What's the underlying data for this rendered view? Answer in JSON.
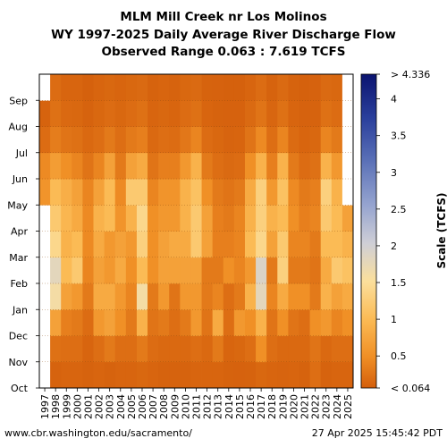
{
  "title": {
    "line1": "MLM Mill Creek nr Los Molinos",
    "line2": "WY 1997-2025 Daily Average River Discharge Flow",
    "line3": "Observed Range 0.063 : 7.619 TCFS"
  },
  "footer": {
    "source": "www.cbr.washington.edu/sacramento/",
    "timestamp": "27 Apr 2025 15:45:42 PDT"
  },
  "chart_data": {
    "type": "heatmap",
    "x_label": "",
    "y_label": "",
    "years": [
      "1997",
      "1998",
      "1999",
      "2000",
      "2001",
      "2002",
      "2003",
      "2004",
      "2005",
      "2006",
      "2007",
      "2008",
      "2009",
      "2010",
      "2011",
      "2012",
      "2013",
      "2014",
      "2015",
      "2016",
      "2017",
      "2018",
      "2019",
      "2020",
      "2021",
      "2022",
      "2023",
      "2024",
      "2025"
    ],
    "months": [
      "Oct",
      "Nov",
      "Dec",
      "Jan",
      "Feb",
      "Mar",
      "Apr",
      "May",
      "Jun",
      "Jul",
      "Aug",
      "Sep"
    ],
    "colorbar": {
      "title": "Scale (TCFS)",
      "ticks": [
        "< 0.064",
        "0.5",
        "1",
        "1.5",
        "2",
        "2.5",
        "3",
        "3.5",
        "4",
        "> 4.336"
      ],
      "tick_values": [
        0.064,
        0.5,
        1,
        1.5,
        2,
        2.5,
        3,
        3.5,
        4,
        4.336
      ],
      "min": 0.064,
      "max": 4.336
    },
    "monthly_mean_tcfs": [
      [
        0.0,
        0.0,
        0.0,
        0.0,
        0.0,
        0.0,
        0.0,
        0.55,
        0.45,
        0.18,
        0.1,
        0.0
      ],
      [
        0.1,
        0.22,
        0.7,
        1.6,
        1.8,
        1.4,
        1.2,
        1.0,
        0.65,
        0.33,
        0.22,
        0.18
      ],
      [
        0.12,
        0.2,
        0.35,
        0.7,
        1.0,
        0.9,
        0.95,
        0.85,
        0.5,
        0.25,
        0.15,
        0.12
      ],
      [
        0.12,
        0.2,
        0.3,
        0.6,
        1.2,
        1.0,
        0.8,
        0.7,
        0.4,
        0.22,
        0.14,
        0.12
      ],
      [
        0.1,
        0.12,
        0.18,
        0.3,
        0.4,
        0.45,
        0.45,
        0.4,
        0.25,
        0.15,
        0.1,
        0.08
      ],
      [
        0.12,
        0.2,
        0.6,
        0.8,
        0.7,
        0.8,
        0.9,
        0.7,
        0.4,
        0.2,
        0.14,
        0.12
      ],
      [
        0.1,
        0.3,
        0.7,
        0.8,
        0.6,
        0.6,
        1.0,
        1.0,
        0.7,
        0.3,
        0.18,
        0.14
      ],
      [
        0.12,
        0.2,
        0.5,
        0.6,
        0.8,
        0.7,
        0.55,
        0.45,
        0.3,
        0.2,
        0.14,
        0.12
      ],
      [
        0.12,
        0.2,
        0.3,
        0.4,
        0.5,
        0.6,
        0.9,
        1.2,
        0.7,
        0.3,
        0.18,
        0.14
      ],
      [
        0.14,
        0.3,
        0.9,
        1.6,
        1.0,
        1.3,
        1.4,
        1.2,
        0.8,
        0.35,
        0.22,
        0.16
      ],
      [
        0.12,
        0.18,
        0.25,
        0.3,
        0.5,
        0.5,
        0.5,
        0.4,
        0.25,
        0.15,
        0.12,
        0.1
      ],
      [
        0.1,
        0.15,
        0.3,
        0.6,
        0.7,
        0.7,
        0.6,
        0.55,
        0.35,
        0.2,
        0.14,
        0.12
      ],
      [
        0.1,
        0.15,
        0.2,
        0.25,
        0.7,
        0.8,
        0.6,
        0.55,
        0.35,
        0.18,
        0.12,
        0.1
      ],
      [
        0.1,
        0.15,
        0.3,
        0.6,
        0.7,
        0.8,
        0.9,
        0.9,
        0.6,
        0.28,
        0.18,
        0.14
      ],
      [
        0.12,
        0.2,
        0.6,
        0.6,
        0.7,
        1.2,
        1.2,
        1.1,
        0.9,
        0.4,
        0.22,
        0.16
      ],
      [
        0.12,
        0.15,
        0.25,
        0.3,
        0.3,
        0.7,
        0.7,
        0.5,
        0.3,
        0.18,
        0.12,
        0.1
      ],
      [
        0.12,
        0.3,
        0.8,
        0.4,
        0.3,
        0.35,
        0.35,
        0.3,
        0.2,
        0.14,
        0.1,
        0.09
      ],
      [
        0.1,
        0.12,
        0.2,
        0.2,
        0.5,
        0.35,
        0.3,
        0.25,
        0.16,
        0.11,
        0.09,
        0.08
      ],
      [
        0.09,
        0.14,
        0.6,
        0.3,
        0.4,
        0.4,
        0.4,
        0.3,
        0.18,
        0.12,
        0.09,
        0.08
      ],
      [
        0.1,
        0.2,
        0.5,
        0.9,
        0.6,
        1.0,
        0.9,
        0.8,
        0.5,
        0.25,
        0.16,
        0.12
      ],
      [
        0.14,
        0.5,
        0.9,
        1.8,
        1.9,
        1.4,
        1.3,
        1.3,
        0.9,
        0.45,
        0.25,
        0.18
      ],
      [
        0.12,
        0.2,
        0.25,
        0.4,
        0.3,
        0.7,
        0.9,
        0.6,
        0.35,
        0.2,
        0.13,
        0.1
      ],
      [
        0.11,
        0.15,
        0.5,
        0.8,
        1.3,
        1.2,
        1.0,
        1.1,
        0.9,
        0.4,
        0.22,
        0.16
      ],
      [
        0.12,
        0.15,
        0.25,
        0.5,
        0.3,
        0.4,
        0.5,
        0.45,
        0.3,
        0.17,
        0.12,
        0.1
      ],
      [
        0.1,
        0.15,
        0.2,
        0.5,
        0.3,
        0.4,
        0.35,
        0.3,
        0.18,
        0.12,
        0.09,
        0.08
      ],
      [
        0.2,
        0.25,
        0.5,
        0.3,
        0.25,
        0.3,
        0.4,
        0.35,
        0.22,
        0.14,
        0.1,
        0.09
      ],
      [
        0.1,
        0.15,
        0.6,
        0.9,
        0.8,
        1.0,
        1.2,
        1.3,
        0.9,
        0.4,
        0.22,
        0.16
      ],
      [
        0.12,
        0.2,
        0.4,
        0.7,
        1.2,
        1.0,
        1.0,
        0.9,
        0.6,
        0.3,
        0.18,
        0.14
      ],
      [
        0.12,
        0.2,
        0.5,
        0.8,
        1.1,
        0.9,
        0.7,
        0.0,
        0.0,
        0.0,
        0.0,
        0.0
      ]
    ]
  }
}
